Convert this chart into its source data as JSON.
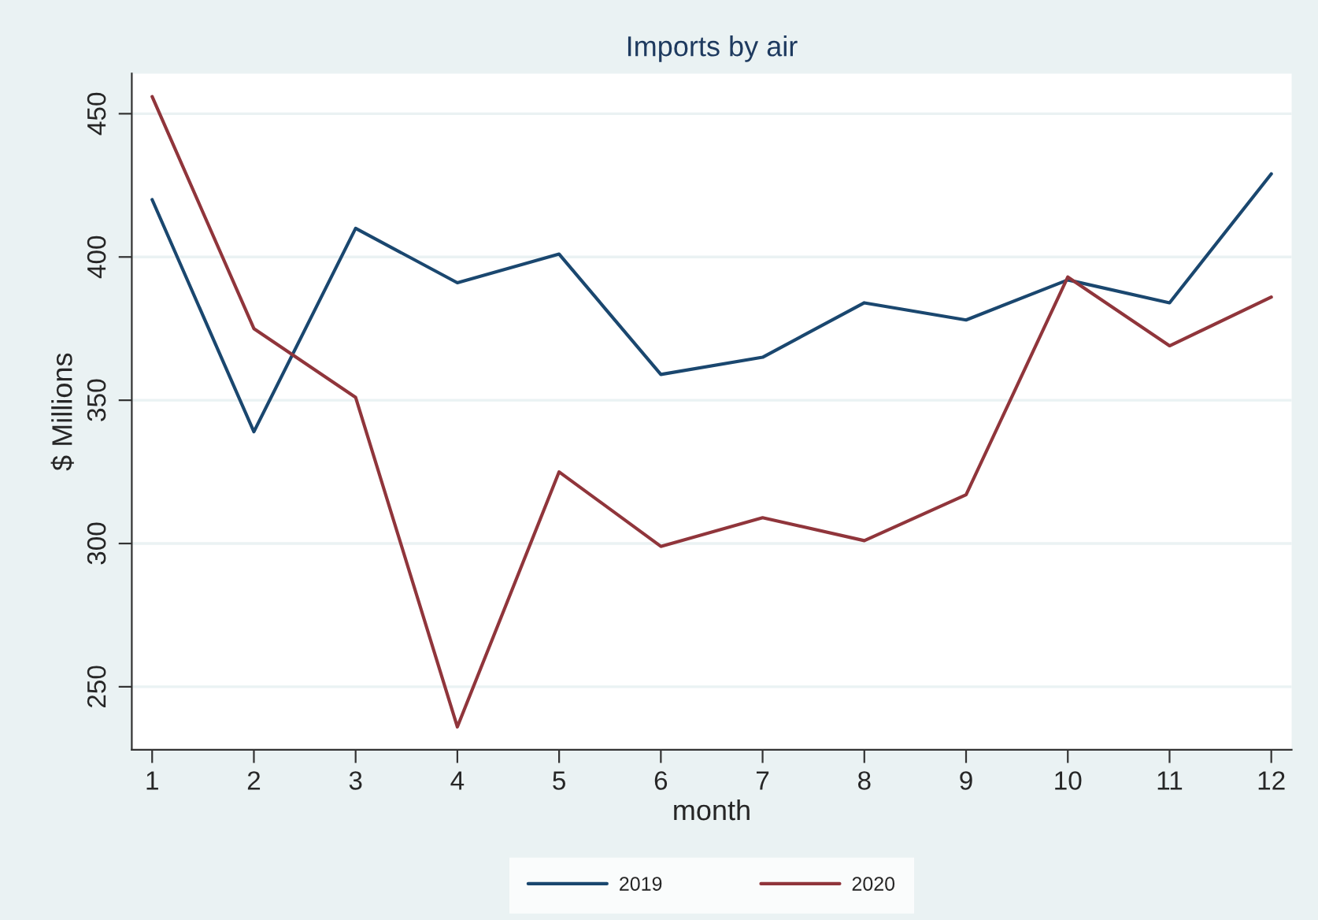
{
  "chart_data": {
    "type": "line",
    "title": "Imports by air",
    "xlabel": "month",
    "ylabel": "$ Millions",
    "x": [
      1,
      2,
      3,
      4,
      5,
      6,
      7,
      8,
      9,
      10,
      11,
      12
    ],
    "series": [
      {
        "name": "2019",
        "color": "#1a476f",
        "values": [
          420,
          339,
          410,
          391,
          401,
          359,
          365,
          384,
          378,
          392,
          384,
          429
        ]
      },
      {
        "name": "2020",
        "color": "#90353b",
        "values": [
          456,
          375,
          351,
          236,
          325,
          299,
          309,
          301,
          317,
          393,
          369,
          386
        ]
      }
    ],
    "xlim": [
      0.8,
      12.2
    ],
    "xticks": [
      1,
      2,
      3,
      4,
      5,
      6,
      7,
      8,
      9,
      10,
      11,
      12
    ],
    "ylim": [
      228,
      464
    ],
    "yticks": [
      250,
      300,
      350,
      400,
      450
    ],
    "grid": "y",
    "legend": "bottom",
    "line_style": "solid",
    "marker": "none"
  }
}
